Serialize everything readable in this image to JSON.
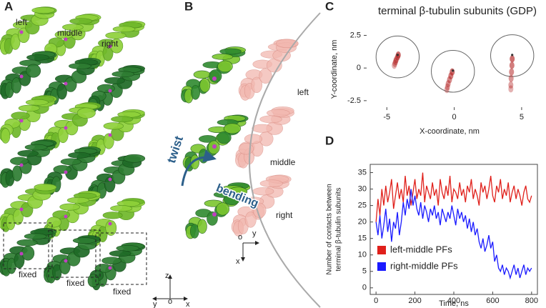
{
  "panel_a": {
    "label": "A",
    "labels": [
      "left",
      "middle",
      "right"
    ],
    "fixed": [
      "fixed",
      "fixed",
      "fixed"
    ],
    "axes": [
      "z",
      "y",
      "o",
      "x"
    ]
  },
  "panel_b": {
    "label": "B",
    "labels": [
      "left",
      "middle",
      "right"
    ],
    "twist": "twist",
    "bending": "bending",
    "axes": [
      "o",
      "y",
      "x"
    ]
  },
  "chart_data": [
    {
      "type": "density",
      "label": "C",
      "title": "terminal β-tubulin subunits (GDP)",
      "x_label": "X-coordinate, nm",
      "y_label": "Y-coordinate, nm",
      "xlim": [
        -6.5,
        5.8
      ],
      "ylim": [
        -3,
        2.8
      ],
      "xticks": [
        -5,
        0,
        5
      ],
      "yticks": [
        -2.5,
        0,
        2.5
      ],
      "circles": {
        "x": [
          -4.2,
          -0.1,
          4.3
        ],
        "y": [
          0.85,
          -0.25,
          0.95
        ],
        "r": [
          1.6,
          1.6,
          1.6
        ]
      },
      "markers": {
        "x": [
          -4.2,
          -0.1,
          4.3
        ],
        "y": [
          1.0,
          -0.2,
          1.0
        ]
      },
      "density": {
        "color": "#b22222",
        "x": [
          -4.45,
          -4.4,
          -4.35,
          -4.3,
          -4.2,
          -4.15,
          -0.55,
          -0.5,
          -0.45,
          -0.35,
          -0.25,
          -0.15,
          4.2,
          4.2,
          4.22,
          4.25,
          4.28,
          4.3
        ],
        "y": [
          0.2,
          0.35,
          0.5,
          0.65,
          0.85,
          1.0,
          -1.65,
          -1.45,
          -1.2,
          -0.9,
          -0.6,
          -0.3,
          -1.6,
          -1.3,
          -0.8,
          -0.3,
          0.2,
          0.7
        ]
      }
    },
    {
      "type": "line",
      "label": "D",
      "x_label": "Time, ns",
      "y_label": [
        "Number of contacts between",
        "terminal β-tubulin subunits"
      ],
      "xlim": [
        -30,
        830
      ],
      "ylim": [
        -2,
        37.5
      ],
      "xticks": [
        0,
        200,
        400,
        600,
        800
      ],
      "yticks": [
        0,
        5,
        10,
        15,
        20,
        25,
        30,
        35
      ],
      "legend": "lower left",
      "x": [
        0,
        10,
        20,
        30,
        40,
        50,
        60,
        70,
        80,
        90,
        100,
        110,
        120,
        130,
        140,
        150,
        160,
        170,
        180,
        190,
        200,
        210,
        220,
        230,
        240,
        250,
        260,
        270,
        280,
        290,
        300,
        310,
        320,
        330,
        340,
        350,
        360,
        370,
        380,
        390,
        400,
        410,
        420,
        430,
        440,
        450,
        460,
        470,
        480,
        490,
        500,
        510,
        520,
        530,
        540,
        550,
        560,
        570,
        580,
        590,
        600,
        610,
        620,
        630,
        640,
        650,
        660,
        670,
        680,
        690,
        700,
        710,
        720,
        730,
        740,
        750,
        760,
        770,
        780,
        790,
        800
      ],
      "series": [
        {
          "name": "left-middle PFs",
          "color": "#e0201b",
          "values": [
            20,
            27,
            22,
            30,
            25,
            31,
            26,
            29,
            33,
            24,
            28,
            32,
            27,
            30,
            26,
            34,
            28,
            31,
            25,
            29,
            33,
            27,
            30,
            28,
            35,
            26,
            31,
            29,
            27,
            32,
            28,
            30,
            25,
            33,
            29,
            27,
            31,
            28,
            34,
            26,
            30,
            29,
            27,
            32,
            28,
            30,
            26,
            31,
            29,
            33,
            27,
            30,
            28,
            25,
            32,
            29,
            31,
            27,
            30,
            34,
            28,
            26,
            31,
            29,
            33,
            27,
            30,
            28,
            32,
            26,
            29,
            31,
            27,
            30,
            28,
            25,
            29,
            31,
            27,
            26,
            28
          ]
        },
        {
          "name": "right-middle PFs",
          "color": "#1a1aff",
          "values": [
            20,
            16,
            22,
            15,
            19,
            24,
            17,
            21,
            14,
            20,
            18,
            23,
            16,
            20,
            26,
            22,
            27,
            24,
            30,
            25,
            28,
            24,
            22,
            26,
            21,
            25,
            23,
            20,
            24,
            22,
            25,
            21,
            23,
            19,
            24,
            22,
            20,
            23,
            21,
            25,
            22,
            19,
            24,
            21,
            23,
            20,
            22,
            18,
            21,
            17,
            20,
            16,
            18,
            14,
            12,
            15,
            11,
            13,
            16,
            12,
            14,
            8,
            10,
            6,
            5,
            7,
            4,
            6,
            5,
            3,
            5,
            7,
            4,
            6,
            3,
            5,
            7,
            4,
            6,
            5,
            6
          ]
        }
      ]
    }
  ]
}
